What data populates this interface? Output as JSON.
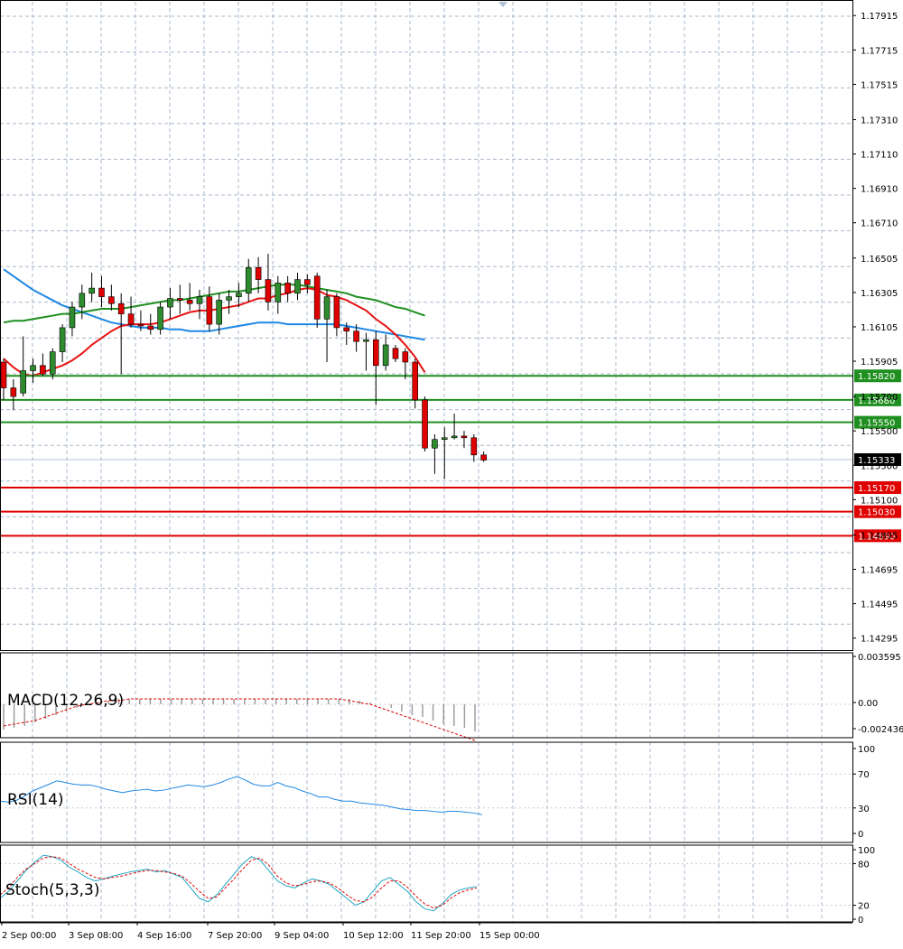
{
  "colors": {
    "grid": "#a9b8cc",
    "bull_candle": "#2e8b2e",
    "bear_candle": "#e00000",
    "wick": "#000000",
    "ma_fast": "#e81313",
    "ma_mid": "#1f8f1f",
    "ma_slow": "#1e88e5",
    "support_level": "#1f8f1f",
    "resistance_level": "#e00000",
    "current_price_bg": "#000000",
    "macd_line": "#e00000",
    "macd_hist": "#9e9e9e",
    "rsi_line": "#1e88e5",
    "stoch_main": "#1fa7c4",
    "stoch_signal": "#e00000"
  },
  "price_axis": {
    "ticks": [
      "1.17915",
      "1.17715",
      "1.17515",
      "1.17310",
      "1.17110",
      "1.16910",
      "1.16710",
      "1.16505",
      "1.16305",
      "1.16105",
      "1.15905",
      "1.15700",
      "1.15500",
      "1.15300",
      "1.15100",
      "1.14895",
      "1.14695",
      "1.14495",
      "1.14295"
    ]
  },
  "levels": [
    {
      "label": "1.15820",
      "value": 1.1582,
      "kind": "support"
    },
    {
      "label": "1.15680",
      "value": 1.1568,
      "kind": "support"
    },
    {
      "label": "1.15550",
      "value": 1.1555,
      "kind": "support"
    },
    {
      "label": "1.15170",
      "value": 1.1517,
      "kind": "resistance"
    },
    {
      "label": "1.15030",
      "value": 1.1503,
      "kind": "resistance"
    },
    {
      "label": "1.14890",
      "value": 1.1489,
      "kind": "resistance"
    }
  ],
  "current_price": {
    "label": "1.15333",
    "value": 1.15333
  },
  "time_axis": {
    "labels": [
      "2 Sep 00:00",
      "3 Sep 08:00",
      "4 Sep 16:00",
      "7 Sep 20:00",
      "9 Sep 04:00",
      "10 Sep 12:00",
      "11 Sep 20:00",
      "15 Sep 00:00"
    ]
  },
  "macd": {
    "label": "MACD(12,26,9)",
    "ticks": [
      "0.003595",
      "0.00",
      "-0.002436"
    ]
  },
  "rsi": {
    "label": "RSI(14)",
    "ticks": [
      "100",
      "70",
      "30",
      "0"
    ]
  },
  "stoch": {
    "label": "Stoch(5,3,3)",
    "ticks": [
      "100",
      "80",
      "20",
      "0"
    ]
  },
  "chart_data": {
    "type": "candlestick",
    "symbol_timeframe": "",
    "candles_ohlc": [
      [
        1.159,
        1.1592,
        1.1568,
        1.1575
      ],
      [
        1.1575,
        1.158,
        1.1562,
        1.157
      ],
      [
        1.1572,
        1.1605,
        1.157,
        1.1585
      ],
      [
        1.1585,
        1.1592,
        1.1578,
        1.1588
      ],
      [
        1.1588,
        1.1595,
        1.1582,
        1.1583
      ],
      [
        1.1583,
        1.1598,
        1.158,
        1.1596
      ],
      [
        1.1596,
        1.1612,
        1.159,
        1.161
      ],
      [
        1.161,
        1.1625,
        1.1605,
        1.1622
      ],
      [
        1.1622,
        1.1635,
        1.1615,
        1.163
      ],
      [
        1.163,
        1.1642,
        1.1625,
        1.1633
      ],
      [
        1.1633,
        1.164,
        1.1622,
        1.1628
      ],
      [
        1.1628,
        1.1635,
        1.162,
        1.1624
      ],
      [
        1.1624,
        1.163,
        1.1583,
        1.1618
      ],
      [
        1.1618,
        1.1628,
        1.161,
        1.1612
      ],
      [
        1.1612,
        1.162,
        1.1608,
        1.1611
      ],
      [
        1.1611,
        1.1618,
        1.1606,
        1.1609
      ],
      [
        1.1609,
        1.1625,
        1.1606,
        1.1622
      ],
      [
        1.1622,
        1.1633,
        1.1615,
        1.1627
      ],
      [
        1.1627,
        1.1635,
        1.1618,
        1.1626
      ],
      [
        1.1626,
        1.1636,
        1.162,
        1.1624
      ],
      [
        1.1624,
        1.1632,
        1.1615,
        1.1628
      ],
      [
        1.1628,
        1.1634,
        1.1608,
        1.1612
      ],
      [
        1.1612,
        1.163,
        1.1606,
        1.1626
      ],
      [
        1.1626,
        1.1632,
        1.1618,
        1.1628
      ],
      [
        1.1628,
        1.1636,
        1.1622,
        1.163
      ],
      [
        1.163,
        1.165,
        1.1625,
        1.1645
      ],
      [
        1.1645,
        1.1651,
        1.163,
        1.1638
      ],
      [
        1.1638,
        1.1653,
        1.162,
        1.1625
      ],
      [
        1.1625,
        1.164,
        1.1618,
        1.1636
      ],
      [
        1.1636,
        1.164,
        1.1625,
        1.163
      ],
      [
        1.163,
        1.1642,
        1.1626,
        1.1638
      ],
      [
        1.1638,
        1.1641,
        1.163,
        1.1635
      ],
      [
        1.164,
        1.1642,
        1.161,
        1.1615
      ],
      [
        1.1615,
        1.1632,
        1.159,
        1.1628
      ],
      [
        1.1628,
        1.163,
        1.1605,
        1.161
      ],
      [
        1.161,
        1.1613,
        1.16,
        1.1608
      ],
      [
        1.1608,
        1.1612,
        1.1596,
        1.1602
      ],
      [
        1.1602,
        1.1607,
        1.1585,
        1.1603
      ],
      [
        1.1603,
        1.1608,
        1.1565,
        1.1588
      ],
      [
        1.1588,
        1.1606,
        1.1585,
        1.16
      ],
      [
        1.1598,
        1.16,
        1.159,
        1.1592
      ],
      [
        1.1596,
        1.1598,
        1.158,
        1.159
      ],
      [
        1.159,
        1.1592,
        1.1563,
        1.1568
      ],
      [
        1.1568,
        1.157,
        1.1538,
        1.154
      ],
      [
        1.154,
        1.1548,
        1.1525,
        1.1545
      ],
      [
        1.1545,
        1.1552,
        1.1522,
        1.1546
      ],
      [
        1.1546,
        1.156,
        1.1545,
        1.1547
      ],
      [
        1.1547,
        1.155,
        1.154,
        1.1546
      ],
      [
        1.1546,
        1.1548,
        1.1532,
        1.1536
      ],
      [
        1.1536,
        1.1538,
        1.1532,
        1.1533
      ]
    ],
    "ma_fast": [
      1.1592,
      1.1587,
      1.1583,
      1.1582,
      1.1584,
      1.1586,
      1.1588,
      1.1591,
      1.1595,
      1.16,
      1.1604,
      1.1608,
      1.1611,
      1.1612,
      1.1612,
      1.1612,
      1.1613,
      1.1615,
      1.1617,
      1.1619,
      1.162,
      1.162,
      1.1621,
      1.1622,
      1.1623,
      1.1625,
      1.1627,
      1.1627,
      1.1629,
      1.163,
      1.1632,
      1.1633,
      1.1632,
      1.1629,
      1.1628,
      1.1626,
      1.1623,
      1.162,
      1.1615,
      1.1611,
      1.1606,
      1.16,
      1.1593,
      1.1584
    ],
    "ma_mid": [
      1.1613,
      1.1614,
      1.1614,
      1.1615,
      1.1616,
      1.1617,
      1.1618,
      1.1618,
      1.1619,
      1.162,
      1.1621,
      1.1621,
      1.1621,
      1.1622,
      1.1623,
      1.1624,
      1.1625,
      1.1626,
      1.1626,
      1.1627,
      1.1628,
      1.1629,
      1.163,
      1.1631,
      1.1631,
      1.1632,
      1.1633,
      1.1634,
      1.1635,
      1.1635,
      1.1635,
      1.1634,
      1.1633,
      1.1632,
      1.1631,
      1.163,
      1.1628,
      1.1627,
      1.1626,
      1.1624,
      1.1622,
      1.1621,
      1.1619,
      1.1617
    ],
    "ma_slow": [
      1.1644,
      1.164,
      1.1636,
      1.1632,
      1.1629,
      1.1626,
      1.1623,
      1.1621,
      1.1619,
      1.1617,
      1.1615,
      1.1613,
      1.1612,
      1.1611,
      1.161,
      1.161,
      1.161,
      1.1609,
      1.1609,
      1.1608,
      1.1608,
      1.1608,
      1.1609,
      1.161,
      1.1611,
      1.1612,
      1.1613,
      1.1613,
      1.1613,
      1.1612,
      1.1612,
      1.1612,
      1.1612,
      1.1612,
      1.1612,
      1.1611,
      1.161,
      1.1609,
      1.1608,
      1.1607,
      1.1606,
      1.1605,
      1.1604,
      1.1603
    ],
    "macd_hist": [
      -14,
      -13,
      -12,
      -10,
      -8,
      -6,
      -4,
      -2,
      0,
      1,
      2,
      3,
      3,
      3,
      3,
      3,
      3,
      3,
      3,
      3,
      3,
      3,
      3,
      3,
      3,
      3,
      3,
      3,
      3,
      3,
      3,
      3,
      3,
      3,
      2,
      1,
      0,
      -2,
      -4,
      -6,
      -7,
      -9,
      -11,
      -12,
      -13,
      -15
    ],
    "macd_signal": [
      -12,
      -11,
      -10,
      -9,
      -7,
      -5,
      -3,
      -1,
      0,
      1,
      2,
      2,
      3,
      3,
      3,
      3,
      3,
      3,
      3,
      3,
      3,
      3,
      3,
      3,
      3,
      3,
      3,
      3,
      3,
      3,
      3,
      3,
      3,
      2,
      1,
      0,
      -2,
      -4,
      -6,
      -8,
      -10,
      -12,
      -14,
      -16,
      -18,
      -20
    ],
    "rsi": [
      38,
      37,
      39,
      44,
      50,
      54,
      58,
      62,
      60,
      58,
      57,
      57,
      55,
      52,
      50,
      48,
      50,
      51,
      52,
      50,
      51,
      53,
      55,
      57,
      56,
      55,
      57,
      60,
      64,
      67,
      63,
      58,
      56,
      56,
      60,
      56,
      54,
      50,
      47,
      43,
      43,
      40,
      38,
      38,
      36,
      35,
      34,
      33,
      31,
      29,
      28,
      27,
      27,
      26,
      25,
      26,
      26,
      25,
      24,
      22
    ],
    "stoch_main": [
      30,
      40,
      55,
      70,
      82,
      92,
      90,
      85,
      75,
      68,
      60,
      55,
      58,
      62,
      65,
      68,
      70,
      72,
      68,
      70,
      65,
      60,
      45,
      30,
      25,
      35,
      50,
      65,
      80,
      90,
      85,
      70,
      55,
      48,
      45,
      52,
      58,
      55,
      50,
      40,
      30,
      20,
      25,
      40,
      55,
      60,
      50,
      40,
      25,
      15,
      12,
      22,
      35,
      42,
      45,
      47
    ],
    "stoch_signal": [
      35,
      45,
      60,
      72,
      80,
      88,
      90,
      88,
      80,
      72,
      66,
      60,
      58,
      60,
      62,
      65,
      68,
      70,
      70,
      68,
      66,
      62,
      52,
      40,
      30,
      32,
      45,
      58,
      72,
      85,
      88,
      78,
      62,
      52,
      48,
      50,
      54,
      55,
      52,
      45,
      35,
      27,
      25,
      32,
      45,
      55,
      55,
      46,
      33,
      22,
      16,
      20,
      30,
      38,
      42,
      45
    ]
  }
}
